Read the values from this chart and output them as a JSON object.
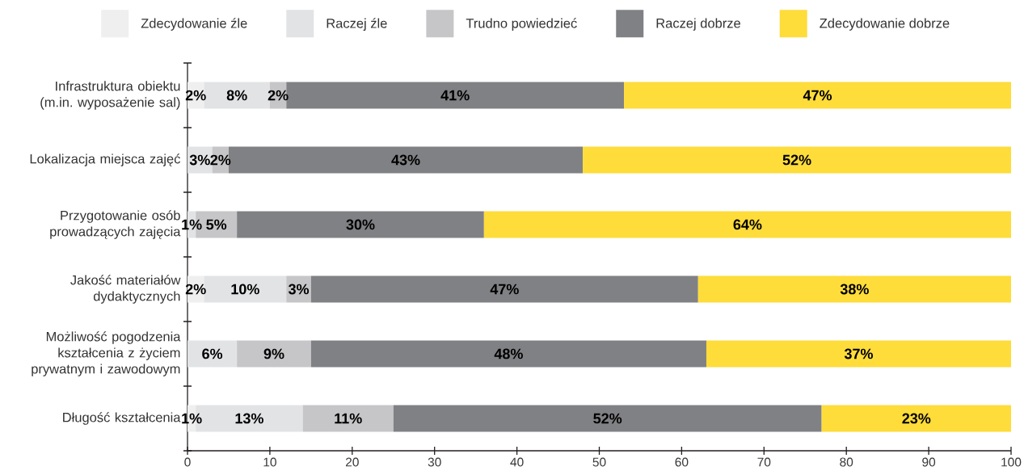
{
  "chart_data": {
    "type": "bar",
    "orientation": "horizontal",
    "stacked": true,
    "categories": [
      "Infrastruktura obiektu (m.in. wyposażenie sal)",
      "Lokalizacja miejsca zajęć",
      "Przygotowanie osób prowadzących zajęcia",
      "Jakość materiałów dydaktycznych",
      "Możliwość pogodzenia kształcenia z życiem prywatnym i zawodowym",
      "Długość kształcenia"
    ],
    "series": [
      {
        "name": "Zdecydowanie źle",
        "color": "#eeefee",
        "values": [
          2,
          null,
          null,
          2,
          null,
          1
        ],
        "value_labels": [
          "2%",
          null,
          null,
          "2%",
          null,
          "1%"
        ]
      },
      {
        "name": "Raczej źle",
        "color": "#e2e3e5",
        "values": [
          8,
          3,
          1,
          10,
          6,
          13
        ],
        "value_labels": [
          "8%",
          "3%",
          "1%",
          "10%",
          "6%",
          "13%"
        ]
      },
      {
        "name": "Trudno powiedzieć",
        "color": "#c6c6c8",
        "values": [
          2,
          2,
          5,
          3,
          9,
          11
        ],
        "value_labels": [
          "2%",
          "2%",
          "5%",
          "3%",
          "9%",
          "11%"
        ]
      },
      {
        "name": "Raczej dobrze",
        "color": "#808184",
        "values": [
          41,
          43,
          30,
          47,
          48,
          52
        ],
        "value_labels": [
          "41%",
          "43%",
          "30%",
          "47%",
          "48%",
          "52%"
        ]
      },
      {
        "name": "Zdecydowanie dobrze",
        "color": "#fedc3a",
        "values": [
          47,
          52,
          64,
          38,
          37,
          23
        ],
        "value_labels": [
          "47%",
          "52%",
          "64%",
          "38%",
          "37%",
          "23%"
        ]
      }
    ],
    "xlim": [
      0,
      100
    ],
    "xticks": [
      0,
      10,
      20,
      30,
      40,
      50,
      60,
      70,
      80,
      90,
      100
    ],
    "legend": "top"
  }
}
